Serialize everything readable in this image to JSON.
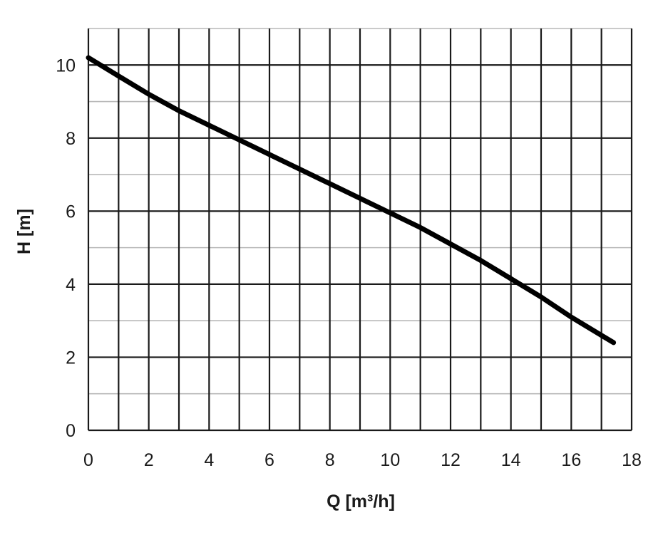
{
  "chart_data": {
    "type": "line",
    "title": "",
    "xlabel": "Q [m³/h]",
    "ylabel": "H [m]",
    "xlim": [
      0,
      18
    ],
    "ylim": [
      0,
      11
    ],
    "x_ticks": [
      0,
      2,
      4,
      6,
      8,
      10,
      12,
      14,
      16,
      18
    ],
    "y_ticks": [
      0,
      2,
      4,
      6,
      8,
      10
    ],
    "grid": true,
    "legend": "none",
    "series": [
      {
        "x": [
          0,
          1,
          2,
          3,
          4,
          5,
          6,
          7,
          8,
          9,
          10,
          11,
          12,
          13,
          14,
          15,
          16,
          17,
          17.4
        ],
        "y": [
          10.2,
          9.7,
          9.2,
          8.75,
          8.35,
          7.95,
          7.55,
          7.15,
          6.75,
          6.35,
          5.95,
          5.55,
          5.1,
          4.65,
          4.15,
          3.65,
          3.1,
          2.6,
          2.4
        ],
        "color": "#000000"
      }
    ]
  }
}
